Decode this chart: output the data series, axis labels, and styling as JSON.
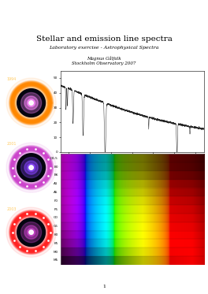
{
  "title": "Stellar and emission line spectra",
  "subtitle": "Laboratory exercise - Astrophysical Spectra",
  "author": "Magnus Gålfalk",
  "institute": "Stockholm Observatory 2007",
  "page_number": "1",
  "bg_color": "#ffffff",
  "spectral_types": [
    "O6.5",
    "B0",
    "B6",
    "A1",
    "A5",
    "F0",
    "F5",
    "G0",
    "G5",
    "K0",
    "K5",
    "M0",
    "M5"
  ],
  "title_fontsize": 7.5,
  "subtitle_fontsize": 4.5,
  "author_fontsize": 4.0,
  "page_num_fontsize": 4.5,
  "sn_data": [
    {
      "year": "1994",
      "ring_color": "#ff8800",
      "center_color": "#ff88ff"
    },
    {
      "year": "2001",
      "ring_color": "#cc44cc",
      "center_color": "#8844ff"
    },
    {
      "year": "2003",
      "ring_color": "#ff2222",
      "center_color": "#cc44cc"
    }
  ],
  "temp_factors": {
    "O6.5": 40000,
    "B0": 30000,
    "B6": 15000,
    "A1": 9700,
    "A5": 8200,
    "F0": 7200,
    "F5": 6500,
    "G0": 6000,
    "G5": 5500,
    "K0": 5000,
    "K5": 4500,
    "M0": 3800,
    "M5": 3000
  }
}
